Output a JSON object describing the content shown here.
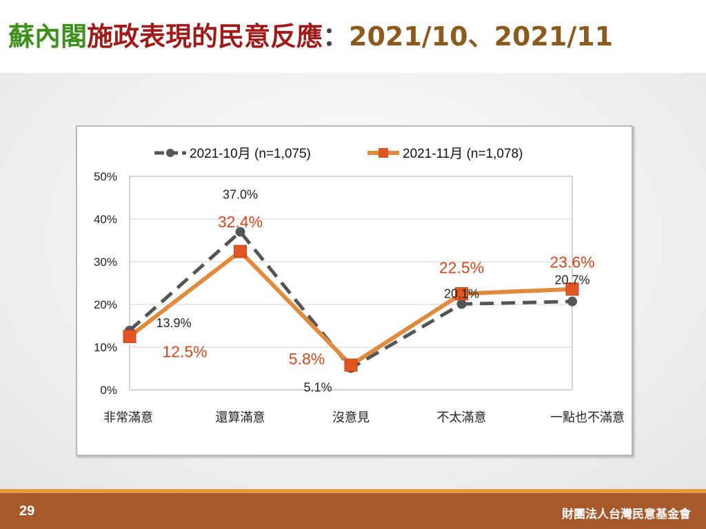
{
  "slide": {
    "title_part1": "蘇內閣",
    "title_part2": "施政表現的民意反應",
    "title_sep": "：",
    "title_part3": "2021/10、2021/11",
    "page_number": "29",
    "organization": "財團法人台灣民意基金會"
  },
  "colors": {
    "series_oct": "#555555",
    "series_nov": "#e08a3c",
    "marker_nov": "#e35424",
    "label_nov": "#d8461c",
    "label_oct": "#222222"
  },
  "chart_data": {
    "type": "line",
    "categories": [
      "非常滿意",
      "還算滿意",
      "沒意見",
      "不太滿意",
      "一點也不滿意"
    ],
    "y_ticks": [
      "0%",
      "10%",
      "20%",
      "30%",
      "40%",
      "50%"
    ],
    "ylim": [
      0,
      50
    ],
    "grid": true,
    "legend_position": "top",
    "series": [
      {
        "name": "2021-10月  (n=1,075)",
        "style": "dashed, circle markers",
        "values": [
          13.9,
          37.0,
          5.1,
          20.1,
          20.7
        ],
        "labels": [
          "13.9%",
          "37.0%",
          "5.1%",
          "20.1%",
          "20.7%"
        ]
      },
      {
        "name": "2021-11月  (n=1,078)",
        "style": "solid, square markers",
        "values": [
          12.5,
          32.4,
          5.8,
          22.5,
          23.6
        ],
        "labels": [
          "12.5%",
          "32.4%",
          "5.8%",
          "22.5%",
          "23.6%"
        ]
      }
    ]
  }
}
